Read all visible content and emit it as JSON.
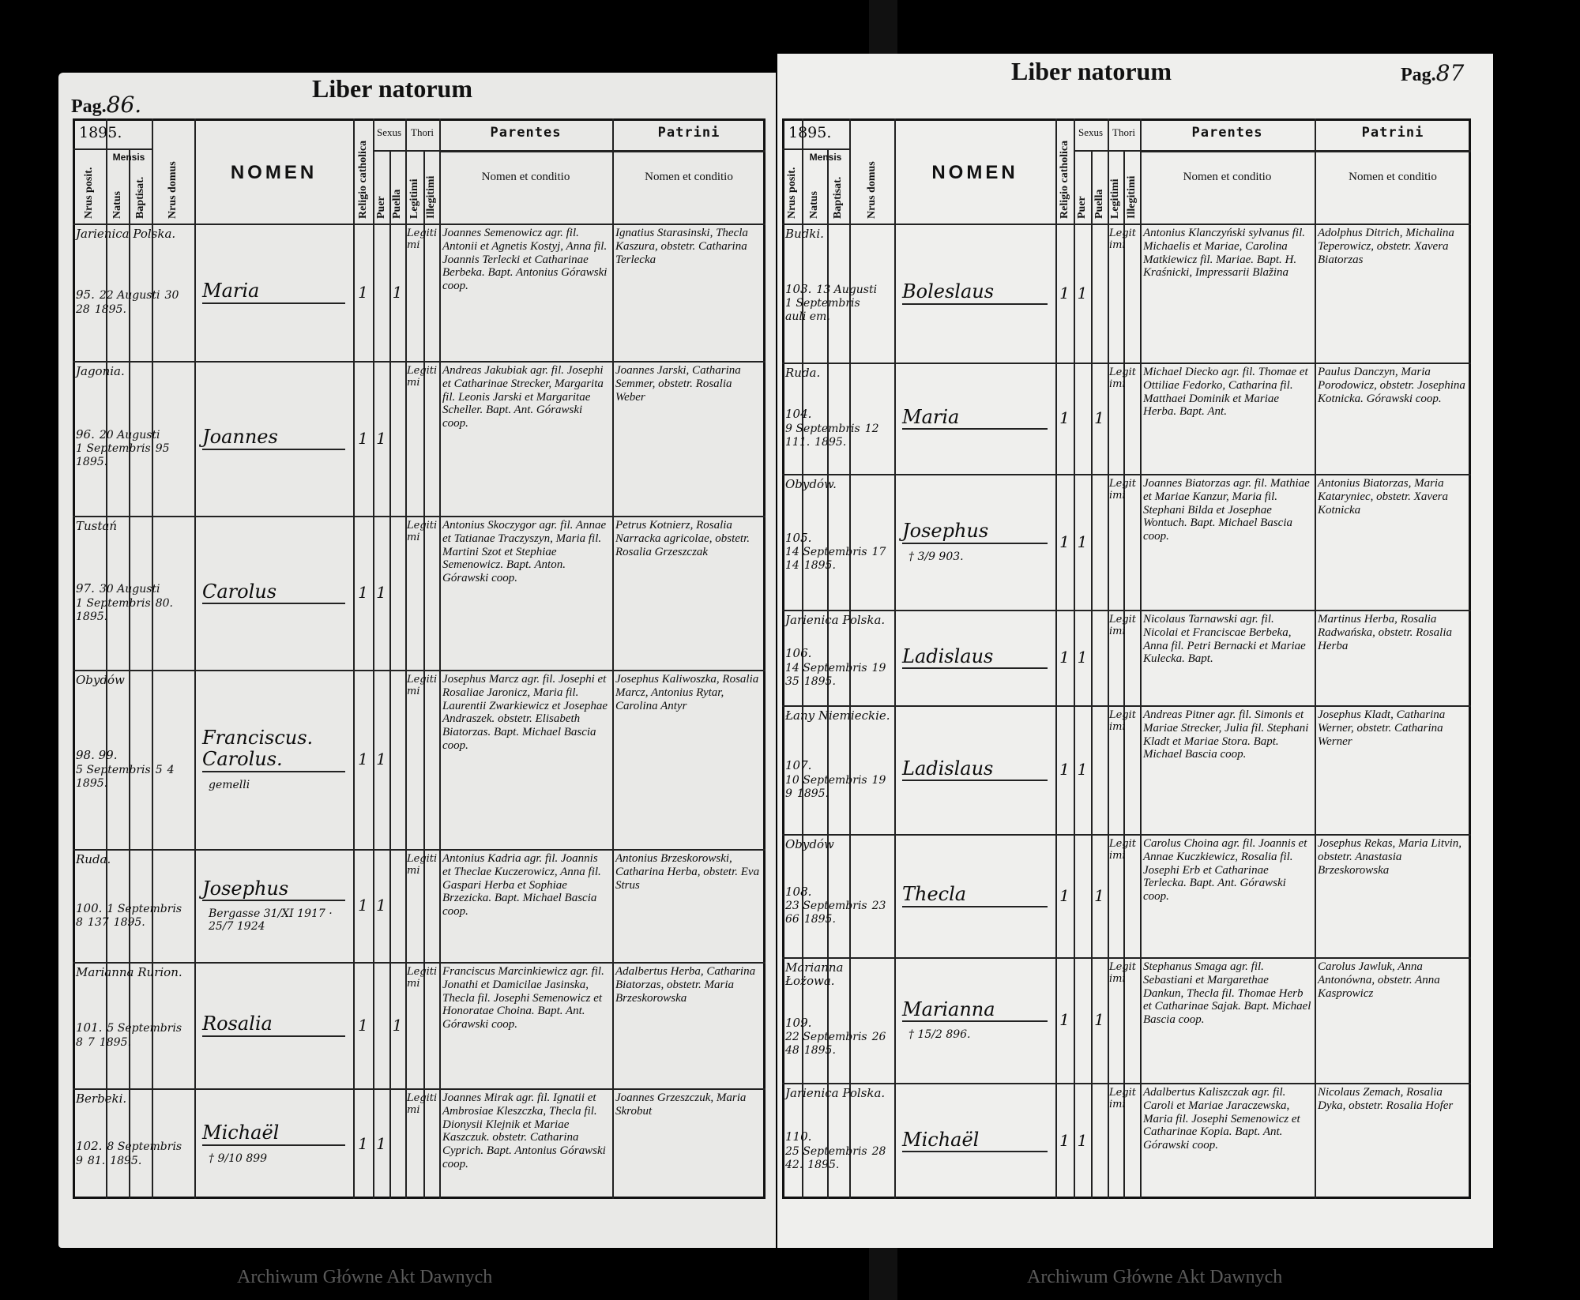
{
  "watermark": "Archiwum Główne Akt Dawnych",
  "headers": {
    "title": "Liber natorum",
    "year": "1895.",
    "nrus_posit": "Nrus posit.",
    "mensis": "Mensis",
    "natus": "Natus",
    "baptisat": "Baptisat.",
    "nrus_domus": "Nrus domus",
    "nomen": "NOMEN",
    "religio": "Religio catholica",
    "sexus": "Sexus",
    "puer": "Puer",
    "puella": "Puella",
    "thori": "Thori",
    "legitimi": "Legitimi",
    "illegitimi": "Illegitimi",
    "parentes": "Parentes",
    "patrini": "Patrini",
    "nomen_conditio": "Nomen et conditio"
  },
  "left_page": {
    "pag_label": "Pag.",
    "pag_number": "86.",
    "entries": [
      {
        "village": "Jarienica Polska.",
        "nr": "95.",
        "natus": "22 Augusti",
        "baptisat": "30",
        "domus": "28",
        "year": "1895.",
        "name": "Maria",
        "note": "",
        "sex": "puella",
        "thori": "Legitimi",
        "parents": "Joannes Semenowicz agr. fil. Antonii et Agnetis Kostyj, Anna fil. Joannis Terlecki et Catharinae Berbeka. Bapt. Antonius Górawski coop.",
        "patrini": "Ignatius Starasinski, Thecla Kaszura, obstetr. Catharina Terlecka"
      },
      {
        "village": "Jagonia.",
        "nr": "96.",
        "natus": "20 Augusti",
        "baptisat": "1 Septembris",
        "domus": "95",
        "year": "1895.",
        "name": "Joannes",
        "note": "",
        "sex": "puer",
        "thori": "Legitimi",
        "parents": "Andreas Jakubiak agr. fil. Josephi et Catharinae Strecker, Margarita fil. Leonis Jarski et Margaritae Scheller. Bapt. Ant. Górawski coop.",
        "patrini": "Joannes Jarski, Catharina Semmer, obstetr. Rosalia Weber"
      },
      {
        "village": "Tustań",
        "nr": "97.",
        "natus": "30 Augusti",
        "baptisat": "1 Septembris",
        "domus": "80.",
        "year": "1895.",
        "name": "Carolus",
        "note": "",
        "sex": "puer",
        "thori": "Legitimi",
        "parents": "Antonius Skoczygor agr. fil. Annae et Tatianae Traczyszyn, Maria fil. Martini Szot et Stephiae Semenowicz. Bapt. Anton. Górawski coop.",
        "patrini": "Petrus Kotnierz, Rosalia Narracka agricolae, obstetr. Rosalia Grzeszczak"
      },
      {
        "village": "Obydów",
        "nr": "98. 99.",
        "natus": "5 Septembris",
        "baptisat": "5",
        "domus": "4",
        "year": "1895.",
        "name": "Franciscus. Carolus.",
        "note": "gemelli",
        "sex": "puer",
        "thori": "Legitimi",
        "parents": "Josephus Marcz agr. fil. Josephi et Rosaliae Jaronicz, Maria fil. Laurentii Zwarkiewicz et Josephae Andraszek. obstetr. Elisabeth Biatorzas. Bapt. Michael Bascia coop.",
        "patrini": "Josephus Kaliwoszka, Rosalia Marcz, Antonius Rytar, Carolina Antyr"
      },
      {
        "village": "Ruda.",
        "nr": "100.",
        "natus": "1 Septembris",
        "baptisat": "8",
        "domus": "137",
        "year": "1895.",
        "name": "Josephus",
        "note": "Bergasse 31/XI 1917 · 25/7 1924",
        "sex": "puer",
        "thori": "Legitimi",
        "parents": "Antonius Kadria agr. fil. Joannis et Theclae Kuczerowicz, Anna fil. Gaspari Herba et Sophiae Brzezicka. Bapt. Michael Bascia coop.",
        "patrini": "Antonius Brzeskorowski, Catharina Herba, obstetr. Eva Strus"
      },
      {
        "village": "Marianna Rurion.",
        "nr": "101.",
        "natus": "5 Septembris",
        "baptisat": "8",
        "domus": "7",
        "year": "1895.",
        "name": "Rosalia",
        "note": "",
        "sex": "puella",
        "thori": "Legitimi",
        "parents": "Franciscus Marcinkiewicz agr. fil. Jonathi et Damicilae Jasinska, Thecla fil. Josephi Semenowicz et Honoratae Choina. Bapt. Ant. Górawski coop.",
        "patrini": "Adalbertus Herba, Catharina Biatorzas, obstetr. Maria Brzeskorowska"
      },
      {
        "village": "Berbeki.",
        "nr": "102.",
        "natus": "8 Septembris",
        "baptisat": "9",
        "domus": "81.",
        "year": "1895.",
        "name": "Michaël",
        "note": "† 9/10 899",
        "sex": "puer",
        "thori": "Legitimi",
        "parents": "Joannes Mirak agr. fil. Ignatii et Ambrosiae Kleszczka, Thecla fil. Dionysii Klejnik et Mariae Kaszczuk. obstetr. Catharina Cyprich. Bapt. Antonius Górawski coop.",
        "patrini": "Joannes Grzeszczuk, Maria Skrobut"
      }
    ]
  },
  "right_page": {
    "pag_label": "Pag.",
    "pag_number": "87",
    "entries": [
      {
        "village": "Budki.",
        "nr": "103.",
        "natus": "13 Augusti",
        "baptisat": "1 Septembris",
        "domus": "auli em.",
        "year": "",
        "name": "Boleslaus",
        "note": "",
        "sex": "puer",
        "thori": "Legitimi",
        "parents": "Antonius Klanczyński sylvanus fil. Michaelis et Mariae, Carolina Matkiewicz fil. Mariae. Bapt. H. Kraśnicki, Impressarii Blažina",
        "patrini": "Adolphus Ditrich, Michalina Teperowicz, obstetr. Xavera Biatorzas"
      },
      {
        "village": "Ruda.",
        "nr": "104.",
        "natus": "9 Septembris",
        "baptisat": "12",
        "domus": "111.",
        "year": "1895.",
        "name": "Maria",
        "note": "",
        "sex": "puella",
        "thori": "Legitimi",
        "parents": "Michael Diecko agr. fil. Thomae et Ottiliae Fedorko, Catharina fil. Matthaei Dominik et Mariae Herba. Bapt. Ant.",
        "patrini": "Paulus Danczyn, Maria Porodowicz, obstetr. Josephina Kotnicka. Górawski coop."
      },
      {
        "village": "Obydów.",
        "nr": "105.",
        "natus": "14 Septembris",
        "baptisat": "17",
        "domus": "14",
        "year": "1895.",
        "name": "Josephus",
        "note": "† 3/9 903.",
        "sex": "puer",
        "thori": "Legitimi",
        "parents": "Joannes Biatorzas agr. fil. Mathiae et Mariae Kanzur, Maria fil. Stephani Bilda et Josephae Wontuch. Bapt. Michael Bascia coop.",
        "patrini": "Antonius Biatorzas, Maria Kataryniec, obstetr. Xavera Kotnicka"
      },
      {
        "village": "Jarienica Polska.",
        "nr": "106.",
        "natus": "14 Septembris",
        "baptisat": "19",
        "domus": "35",
        "year": "1895.",
        "name": "Ladislaus",
        "note": "",
        "sex": "puer",
        "thori": "Legitimi",
        "parents": "Nicolaus Tarnawski agr. fil. Nicolai et Franciscae Berbeka, Anna fil. Petri Bernacki et Mariae Kulecka. Bapt.",
        "patrini": "Martinus Herba, Rosalia Radwańska, obstetr. Rosalia Herba"
      },
      {
        "village": "Łany Niemieckie.",
        "nr": "107.",
        "natus": "10 Septembris",
        "baptisat": "19",
        "domus": "9",
        "year": "1895.",
        "name": "Ladislaus",
        "note": "",
        "sex": "puer",
        "thori": "Legitimi",
        "parents": "Andreas Pitner agr. fil. Simonis et Mariae Strecker, Julia fil. Stephani Kladt et Mariae Stora. Bapt. Michael Bascia coop.",
        "patrini": "Josephus Kladt, Catharina Werner, obstetr. Catharina Werner"
      },
      {
        "village": "Obydów",
        "nr": "108.",
        "natus": "23 Septembris",
        "baptisat": "23",
        "domus": "66",
        "year": "1895.",
        "name": "Thecla",
        "note": "",
        "sex": "puella",
        "thori": "Legitimi",
        "parents": "Carolus Choina agr. fil. Joannis et Annae Kuczkiewicz, Rosalia fil. Josephi Erb et Catharinae Terlecka. Bapt. Ant. Górawski coop.",
        "patrini": "Josephus Rekas, Maria Litvin, obstetr. Anastasia Brzeskorowska"
      },
      {
        "village": "Marianna Łożowa.",
        "nr": "109.",
        "natus": "22 Septembris",
        "baptisat": "26",
        "domus": "48",
        "year": "1895.",
        "name": "Marianna",
        "note": "† 15/2 896.",
        "sex": "puella",
        "thori": "Legitimi",
        "parents": "Stephanus Smaga agr. fil. Sebastiani et Margarethae Dankun, Thecla fil. Thomae Herb et Catharinae Sajak. Bapt. Michael Bascia coop.",
        "patrini": "Carolus Jawluk, Anna Antonówna, obstetr. Anna Kasprowicz"
      },
      {
        "village": "Jarienica Polska.",
        "nr": "110.",
        "natus": "25 Septembris",
        "baptisat": "28",
        "domus": "42.",
        "year": "1895.",
        "name": "Michaël",
        "note": "",
        "sex": "puer",
        "thori": "Legitimi",
        "parents": "Adalbertus Kaliszczak agr. fil. Caroli et Mariae Jaraczewska, Maria fil. Josephi Semenowicz et Catharinae Kopia. Bapt. Ant. Górawski coop.",
        "patrini": "Nicolaus Zemach, Rosalia Dyka, obstetr. Rosalia Hofer"
      }
    ]
  }
}
